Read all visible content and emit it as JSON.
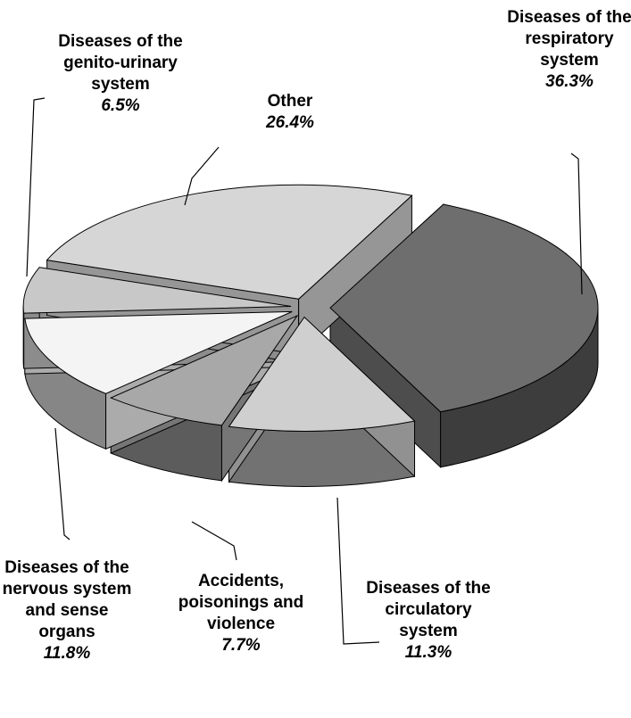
{
  "chart_data": {
    "type": "pie",
    "categories": [
      "Diseases of the respiratory system",
      "Diseases of the circulatory system",
      "Accidents, poisonings and violence",
      "Diseases of the nervous system and sense organs",
      "Diseases of the genito-urinary system",
      "Other"
    ],
    "values": [
      36.3,
      11.3,
      7.7,
      11.8,
      6.5,
      26.4
    ],
    "value_labels": [
      "36.3%",
      "11.3%",
      "7.7%",
      "11.8%",
      "6.5%",
      "26.4%"
    ],
    "colors": [
      "#6e6e6e",
      "#cfcfcf",
      "#a8a8a8",
      "#f4f4f4",
      "#c8c8c8",
      "#d6d6d6"
    ]
  }
}
